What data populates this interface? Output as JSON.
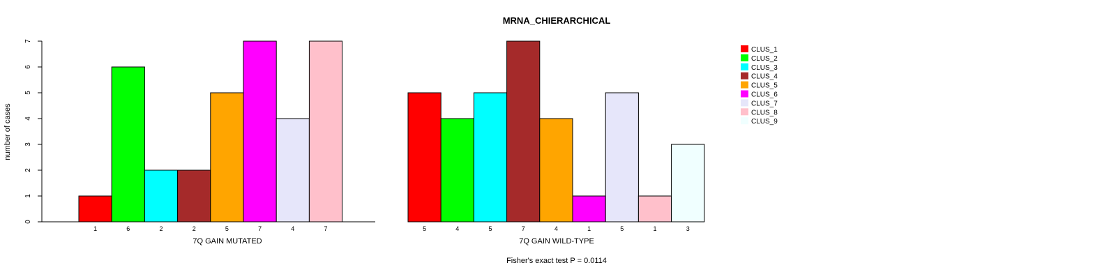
{
  "chart_data": {
    "type": "bar",
    "title": "MRNA_CHIERARCHICAL",
    "ylabel": "number of cases",
    "ylim": [
      0,
      7
    ],
    "yticks": [
      0,
      1,
      2,
      3,
      4,
      5,
      6,
      7
    ],
    "footnote": "Fisher's exact test P = 0.0114",
    "legend_position": "top-right",
    "clusters": [
      {
        "name": "CLUS_1",
        "color": "#ff0000"
      },
      {
        "name": "CLUS_2",
        "color": "#00ff00"
      },
      {
        "name": "CLUS_3",
        "color": "#00ffff"
      },
      {
        "name": "CLUS_4",
        "color": "#a52a2a"
      },
      {
        "name": "CLUS_5",
        "color": "#ffa500"
      },
      {
        "name": "CLUS_6",
        "color": "#ff00ff"
      },
      {
        "name": "CLUS_7",
        "color": "#e6e6fa"
      },
      {
        "name": "CLUS_8",
        "color": "#ffc0cb"
      },
      {
        "name": "CLUS_9",
        "color": "#f0ffff"
      }
    ],
    "groups": [
      {
        "xlabel": "7Q GAIN MUTATED",
        "values": [
          1,
          6,
          2,
          2,
          5,
          7,
          4,
          7,
          0
        ],
        "count_labels": [
          "1",
          "6",
          "2",
          "2",
          "5",
          "7",
          "4",
          "7"
        ]
      },
      {
        "xlabel": "7Q GAIN WILD-TYPE",
        "values": [
          5,
          4,
          5,
          7,
          4,
          1,
          5,
          1,
          3
        ],
        "count_labels": [
          "5",
          "4",
          "5",
          "7",
          "4",
          "1",
          "5",
          "1",
          "3"
        ]
      }
    ]
  }
}
